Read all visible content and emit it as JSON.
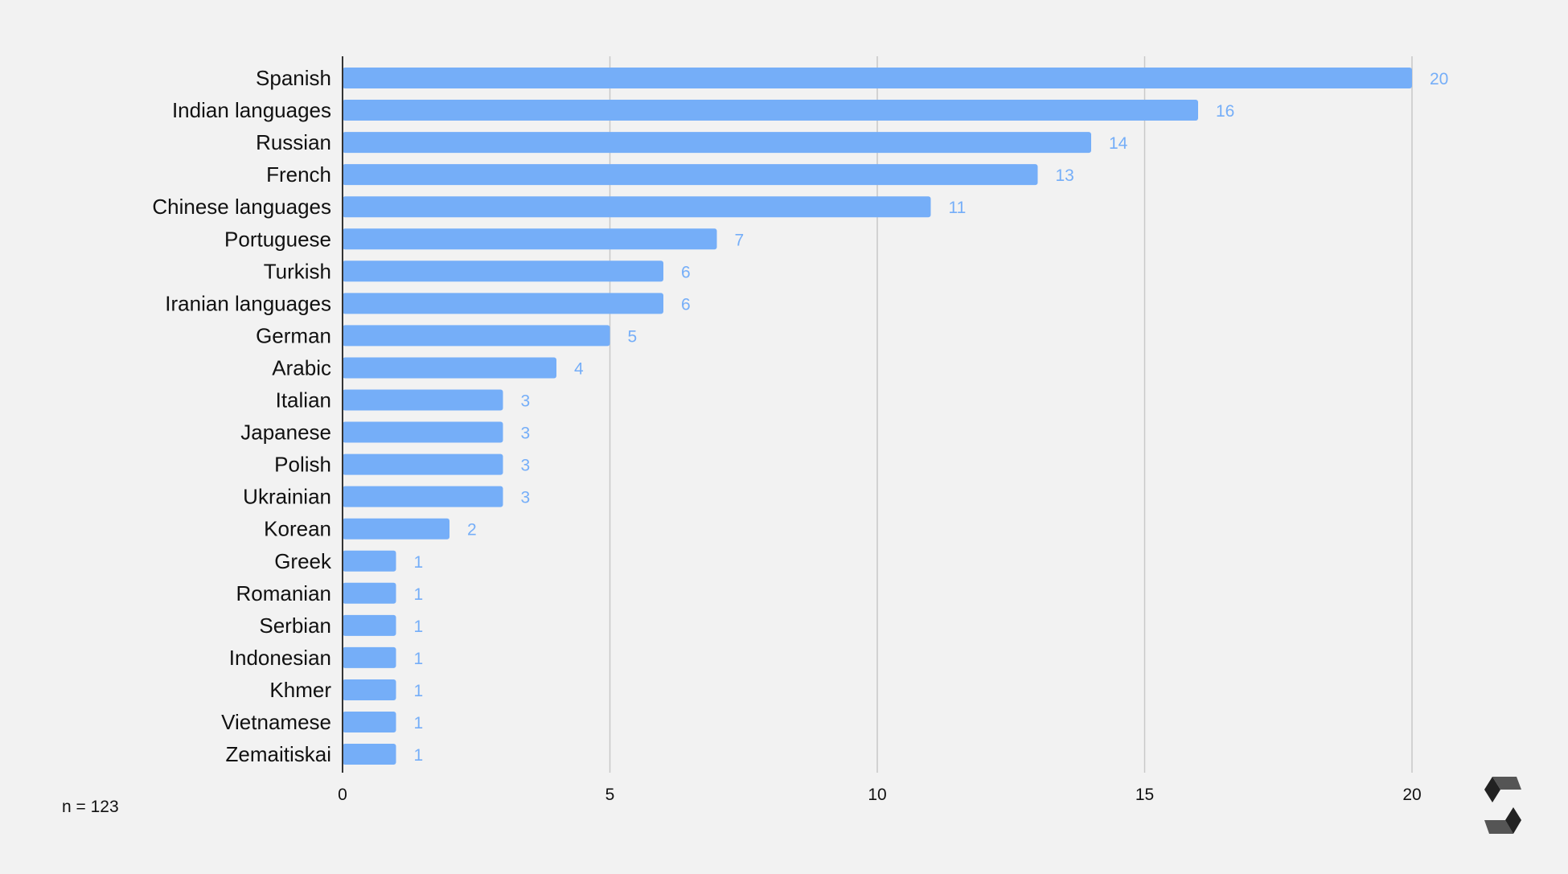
{
  "colors": {
    "background": "#f2f2f2",
    "bar": "#75aef8",
    "value_label": "#75aef8",
    "grid": "#c8c8c8",
    "axis": "#333333",
    "text": "#111111"
  },
  "footnote": "n = 123",
  "logo_icon": "solidity-logo-icon",
  "chart_data": {
    "type": "bar",
    "orientation": "horizontal",
    "title": "",
    "xlabel": "",
    "ylabel": "",
    "xlim": [
      0,
      20
    ],
    "xticks": [
      0,
      5,
      10,
      15,
      20
    ],
    "grid": true,
    "categories": [
      "Spanish",
      "Indian languages",
      "Russian",
      "French",
      "Chinese languages",
      "Portuguese",
      "Turkish",
      "Iranian languages",
      "German",
      "Arabic",
      "Italian",
      "Japanese",
      "Polish",
      "Ukrainian",
      "Korean",
      "Greek",
      "Romanian",
      "Serbian",
      "Indonesian",
      "Khmer",
      "Vietnamese",
      "Zemaitiskai"
    ],
    "values": [
      20,
      16,
      14,
      13,
      11,
      7,
      6,
      6,
      5,
      4,
      3,
      3,
      3,
      3,
      2,
      1,
      1,
      1,
      1,
      1,
      1,
      1
    ]
  }
}
